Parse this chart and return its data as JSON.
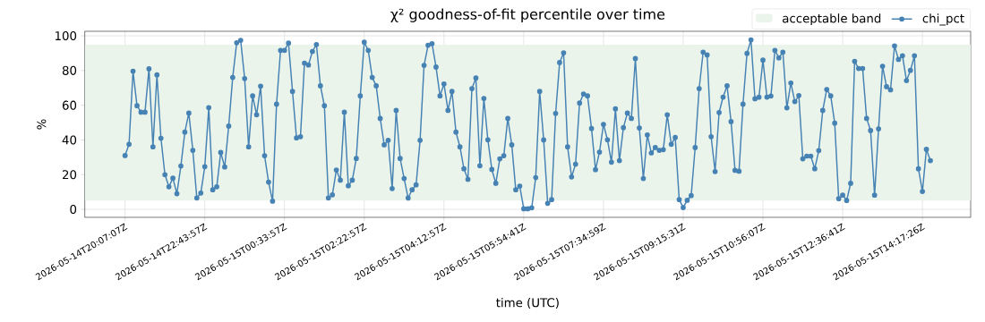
{
  "chart_data": {
    "type": "line",
    "title": "χ² goodness-of-fit percentile over time",
    "xlabel": "time (UTC)",
    "ylabel": "%",
    "categories": [
      "2026-05-14T20:07:07Z",
      null,
      null,
      null,
      null,
      null,
      null,
      null,
      null,
      null,
      null,
      null,
      null,
      null,
      null,
      null,
      null,
      null,
      null,
      null,
      "2026-05-14T22:43:57Z",
      null,
      null,
      null,
      null,
      null,
      null,
      null,
      null,
      null,
      null,
      null,
      null,
      null,
      null,
      null,
      null,
      null,
      null,
      null,
      "2026-05-15T00:33:57Z",
      null,
      null,
      null,
      null,
      null,
      null,
      null,
      null,
      null,
      null,
      null,
      null,
      null,
      null,
      null,
      null,
      null,
      null,
      null,
      "2026-05-15T02:22:57Z",
      null,
      null,
      null,
      null,
      null,
      null,
      null,
      null,
      null,
      null,
      null,
      null,
      null,
      null,
      null,
      null,
      null,
      null,
      null,
      "2026-05-15T04:12:57Z",
      null,
      null,
      null,
      null,
      null,
      null,
      null,
      null,
      null,
      null,
      null,
      null,
      null,
      null,
      null,
      null,
      null,
      null,
      null,
      "2026-05-15T05:54:41Z",
      null,
      null,
      null,
      null,
      null,
      null,
      null,
      null,
      null,
      null,
      null,
      null,
      null,
      null,
      null,
      null,
      null,
      null,
      null,
      "2026-05-15T07:34:59Z",
      null,
      null,
      null,
      null,
      null,
      null,
      null,
      null,
      null,
      null,
      null,
      null,
      null,
      null,
      null,
      null,
      null,
      null,
      null,
      "2026-05-15T09:15:31Z",
      null,
      null,
      null,
      null,
      null,
      null,
      null,
      null,
      null,
      null,
      null,
      null,
      null,
      null,
      null,
      null,
      null,
      null,
      null,
      "2026-05-15T10:56:07Z",
      null,
      null,
      null,
      null,
      null,
      null,
      null,
      null,
      null,
      null,
      null,
      null,
      null,
      null,
      null,
      null,
      null,
      null,
      null,
      "2026-05-15T12:36:41Z",
      null,
      null,
      null,
      null,
      null,
      null,
      null,
      null,
      null,
      null,
      null,
      null,
      null,
      null,
      null,
      null,
      null,
      null,
      null,
      "2026-05-15T14:17:26Z",
      null,
      null
    ],
    "series": [
      {
        "name": "chi_pct",
        "color": "#4682b4",
        "values": [
          31,
          37.5,
          79.6,
          59.7,
          56,
          56,
          81,
          36,
          77.5,
          41,
          20,
          13,
          18,
          9,
          25,
          44.5,
          55.5,
          34,
          6.6,
          9.4,
          24.6,
          58.6,
          11.3,
          13,
          32.8,
          24.4,
          48,
          76,
          96,
          97.4,
          75.4,
          36,
          65.4,
          54.5,
          71,
          30.9,
          15.7,
          4.7,
          60.6,
          91.6,
          91.6,
          95.8,
          68,
          41.2,
          41.9,
          84.3,
          83.2,
          91,
          95,
          71.2,
          59.7,
          6.6,
          8.4,
          22.7,
          16.8,
          56,
          13.6,
          16.8,
          29.3,
          65.4,
          96.3,
          91.6,
          76,
          71.2,
          52.4,
          37.2,
          39.8,
          12,
          57,
          29.3,
          17.8,
          6.5,
          11.3,
          14.1,
          39.8,
          83,
          94.6,
          95.5,
          82,
          65.4,
          72.3,
          57,
          68,
          44.5,
          36,
          23.4,
          17.3,
          69.6,
          75.7,
          25.1,
          63.9,
          40.1,
          23,
          15,
          29.1,
          30.9,
          52.4,
          37.2,
          11.3,
          13.4,
          0.3,
          0.3,
          0.9,
          18.3,
          68,
          40,
          3.5,
          5.6,
          55.3,
          84.6,
          90.2,
          36,
          18.7,
          26,
          61.3,
          66.5,
          65.4,
          46.6,
          22.9,
          33,
          49,
          40.1,
          27.2,
          57.9,
          28.1,
          47.1,
          55.5,
          52.4,
          86.9,
          46.9,
          17.8,
          42.9,
          32.5,
          35.6,
          34,
          34.4,
          54.5,
          37.5,
          41.4,
          5.6,
          1,
          5.2,
          7.9,
          35.6,
          69.6,
          90.6,
          89,
          41.9,
          21.8,
          55.8,
          64.7,
          71.2,
          50.6,
          22.5,
          22,
          60.6,
          89.9,
          97.7,
          63.7,
          64.6,
          86,
          64.7,
          65.3,
          91.6,
          87.3,
          90.6,
          58.5,
          72.8,
          62.1,
          65.6,
          29.1,
          30.7,
          30.7,
          23.4,
          33.9,
          57,
          69.1,
          65.4,
          49.7,
          6.1,
          8.2,
          5.1,
          15,
          85.3,
          81.2,
          81.2,
          52.4,
          45.4,
          8.2,
          46.4,
          82.5,
          70.7,
          68.9,
          94.2,
          86.4,
          88.5,
          74.2,
          80.1,
          88.5,
          23.4,
          10.3,
          34.6,
          28.1
        ]
      }
    ],
    "bands": [
      {
        "axis": "y",
        "from": 5,
        "to": 95,
        "label": "acceptable band",
        "color": "#eaf4ea"
      }
    ],
    "ylim": [
      -4.6,
      102.6
    ],
    "yticks": [
      0,
      20,
      40,
      60,
      80,
      100
    ],
    "grid": true,
    "legend": "top right",
    "marker": "circle",
    "line_style": "solid"
  }
}
